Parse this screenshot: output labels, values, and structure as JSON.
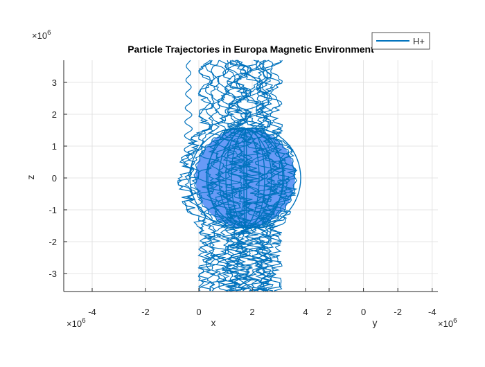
{
  "chart_data": {
    "type": "line",
    "title": "Particle Trajectories in Europa Magnetic Environment",
    "xlabel": "x",
    "ylabel": "y",
    "zlabel": "z",
    "x_exponent": "×10",
    "x_exponent_power": "6",
    "y_exponent": "×10",
    "y_exponent_power": "6",
    "z_exponent": "×10",
    "z_exponent_power": "6",
    "xlim": [
      -5,
      5
    ],
    "ylim": [
      5,
      -5
    ],
    "zlim": [
      -3.5,
      3.7
    ],
    "x_ticks": [
      "-4",
      "-2",
      "0",
      "2",
      "4"
    ],
    "y_ticks": [
      "2",
      "0",
      "-2",
      "-4"
    ],
    "z_ticks": [
      "3",
      "2",
      "1",
      "0",
      "-1",
      "-2",
      "-3"
    ],
    "grid": true,
    "legend_placement": "top-right",
    "series": [
      {
        "name": "H+",
        "color": "#0072bd",
        "description_values": {
          "moon_radius": 1.56,
          "moon_center": [
            2,
            0,
            0
          ],
          "moon_color": "#4d88f5"
        }
      }
    ]
  }
}
